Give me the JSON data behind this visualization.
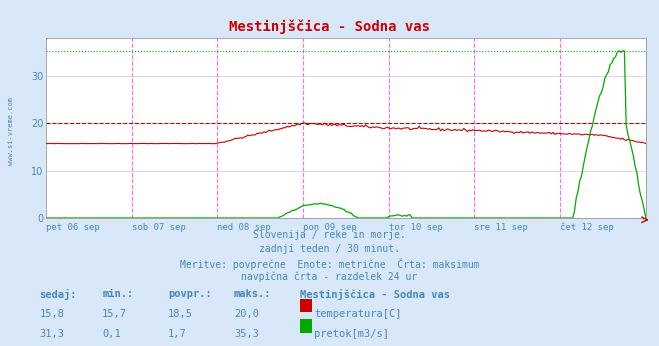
{
  "title": "Mestinjščica - Sodna vas",
  "bg_color": "#d8e8f8",
  "plot_bg_color": "#ffffff",
  "grid_color": "#cccccc",
  "text_color": "#4488bb",
  "title_color": "#cc0000",
  "ylim": [
    0,
    38
  ],
  "yticks": [
    0,
    10,
    20,
    30
  ],
  "xlim": [
    0,
    336
  ],
  "day_labels": [
    "pet 06 sep",
    "sob 07 sep",
    "ned 08 sep",
    "pon 09 sep",
    "tor 10 sep",
    "sre 11 sep",
    "čet 12 sep"
  ],
  "day_positions": [
    0,
    48,
    96,
    144,
    192,
    240,
    288
  ],
  "vline_positions": [
    48,
    96,
    144,
    192,
    240,
    288
  ],
  "max_line_temp": 20.0,
  "max_line_flow": 35.3,
  "footer_lines": [
    "Slovenija / reke in morje.",
    "zadnji teden / 30 minut.",
    "Meritve: povprečne  Enote: metrične  Črta: maksimum",
    "navpična črta - razdelek 24 ur"
  ],
  "table_header": [
    "sedaj:",
    "min.:",
    "povpr.:",
    "maks.:",
    "Mestinjščica - Sodna vas"
  ],
  "table_row1": [
    "15,8",
    "15,7",
    "18,5",
    "20,0",
    "temperatura[C]"
  ],
  "table_row2": [
    "31,3",
    "0,1",
    "1,7",
    "35,3",
    "pretok[m3/s]"
  ],
  "temp_color": "#cc0000",
  "flow_color": "#00aa00",
  "left_label": "www.si-vreme.com"
}
